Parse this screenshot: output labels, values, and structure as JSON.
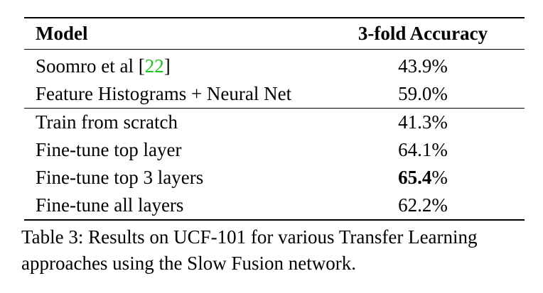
{
  "table": {
    "headers": {
      "model": "Model",
      "accuracy": "3-fold Accuracy"
    },
    "rows": [
      {
        "model_prefix": "Soomro et al [",
        "citation": "22",
        "model_suffix": "]",
        "accuracy": "43.9%"
      },
      {
        "model": "Feature Histograms + Neural Net",
        "accuracy": "59.0%"
      },
      {
        "model": "Train from scratch",
        "accuracy": "41.3%"
      },
      {
        "model": "Fine-tune top layer",
        "accuracy": "64.1%"
      },
      {
        "model": "Fine-tune top 3 layers",
        "accuracy_bold": "65.4",
        "accuracy_unit": "%"
      },
      {
        "model": "Fine-tune all layers",
        "accuracy": "62.2%"
      }
    ]
  },
  "caption": "Table 3: Results on UCF-101 for various Transfer Learning approaches using the Slow Fusion network.",
  "colors": {
    "citation": "#22c322",
    "text": "#000000"
  }
}
